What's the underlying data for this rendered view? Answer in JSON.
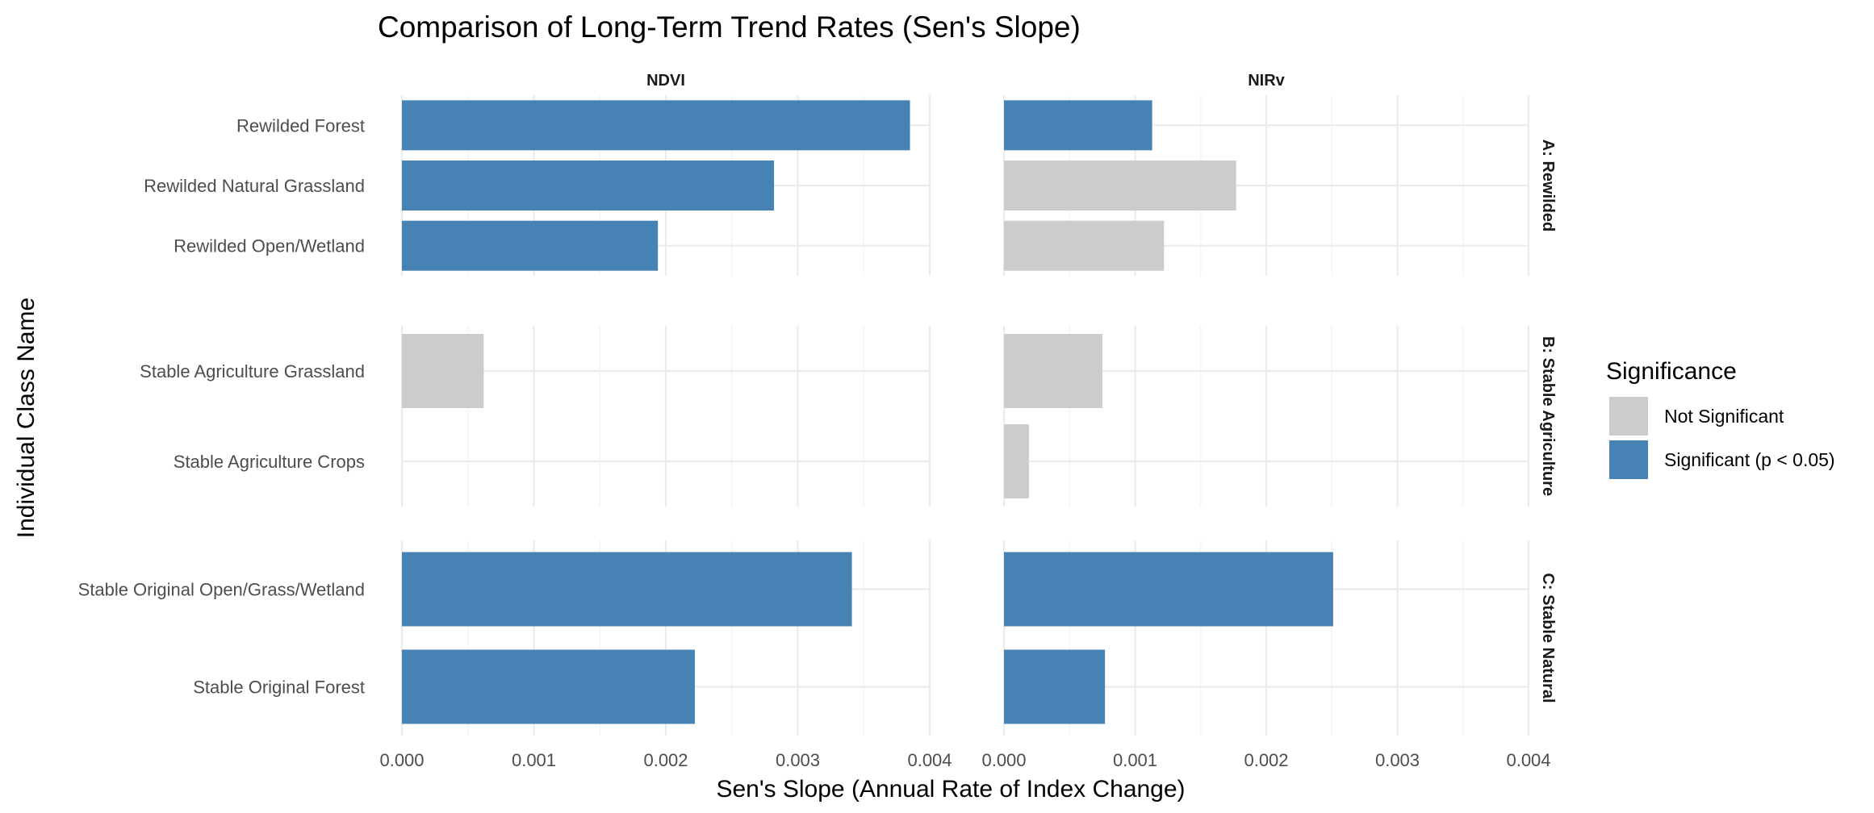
{
  "chart_data": {
    "type": "bar",
    "orientation": "horizontal",
    "title": "Comparison of Long-Term Trend Rates (Sen's Slope)",
    "xlabel": "Sen's Slope (Annual Rate of Index Change)",
    "ylabel": "Individual Class Name",
    "xlim": [
      0,
      0.004
    ],
    "x_ticks": [
      "0.000",
      "0.001",
      "0.002",
      "0.003",
      "0.004"
    ],
    "grid": true,
    "columns": [
      "NDVI",
      "NIRv"
    ],
    "rows": [
      {
        "label": "A: Rewilded",
        "categories": [
          "Rewilded Forest",
          "Rewilded Natural Grassland",
          "Rewilded Open/Wetland"
        ],
        "values": {
          "NDVI": [
            0.00385,
            0.00282,
            0.00194
          ],
          "NIRv": [
            0.00113,
            0.00177,
            0.00122
          ]
        },
        "significance": {
          "NDVI": [
            "Significant (p < 0.05)",
            "Significant (p < 0.05)",
            "Significant (p < 0.05)"
          ],
          "NIRv": [
            "Significant (p < 0.05)",
            "Not Significant",
            "Not Significant"
          ]
        }
      },
      {
        "label": "B: Stable Agriculture",
        "categories": [
          "Stable Agriculture Grassland",
          "Stable Agriculture Crops"
        ],
        "values": {
          "NDVI": [
            0.00062,
            0
          ],
          "NIRv": [
            0.00075,
            0.00019
          ]
        },
        "significance": {
          "NDVI": [
            "Not Significant",
            "Not Significant"
          ],
          "NIRv": [
            "Not Significant",
            "Not Significant"
          ]
        }
      },
      {
        "label": "C: Stable Natural",
        "categories": [
          "Stable Original Open/Grass/Wetland",
          "Stable Original Forest"
        ],
        "values": {
          "NDVI": [
            0.00341,
            0.00222
          ],
          "NIRv": [
            0.00251,
            0.00077
          ]
        },
        "significance": {
          "NDVI": [
            "Significant (p < 0.05)",
            "Significant (p < 0.05)"
          ],
          "NIRv": [
            "Significant (p < 0.05)",
            "Significant (p < 0.05)"
          ]
        }
      }
    ],
    "legend": {
      "title": "Significance",
      "position": "right",
      "items": [
        {
          "label": "Not Significant",
          "color": "#cccccc"
        },
        {
          "label": "Significant (p < 0.05)",
          "color": "#4682b4"
        }
      ]
    }
  }
}
